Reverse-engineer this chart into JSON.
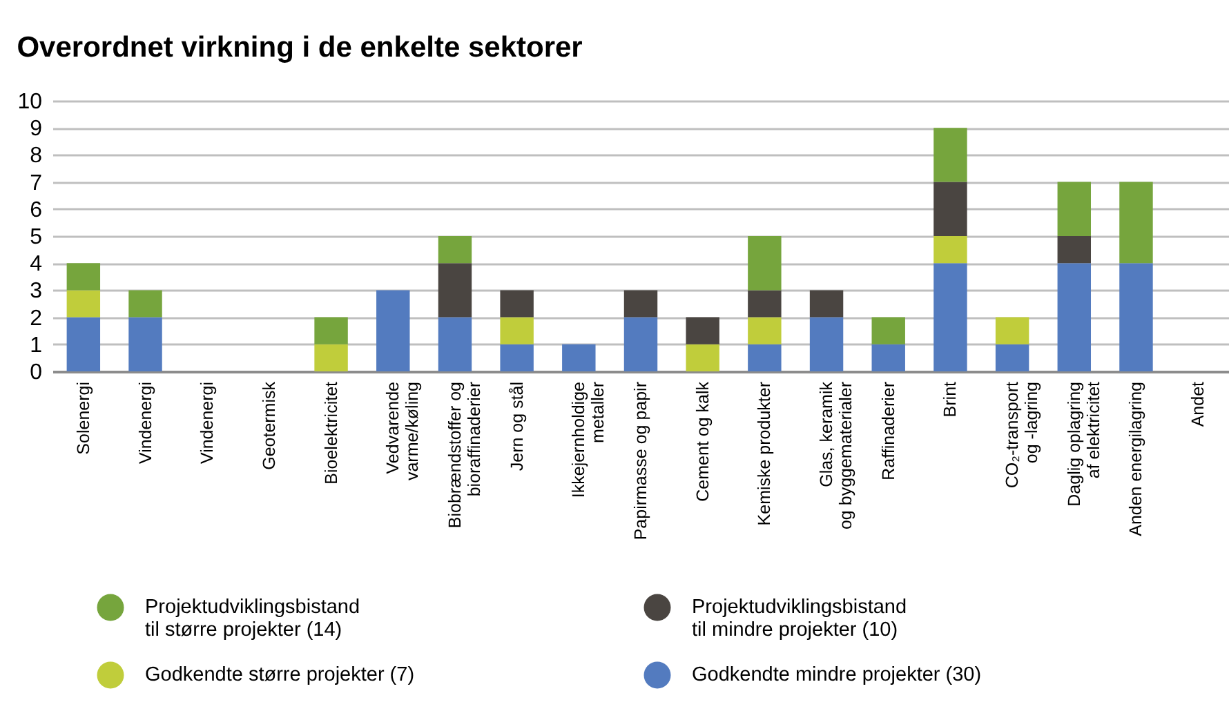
{
  "chart_data": {
    "type": "bar",
    "title": "Overordnet virkning i de enkelte sektorer",
    "categories": [
      "Solenergi",
      "Vindenergi",
      "Vindenergi",
      "Geotermisk",
      "Bioelektricitet",
      "Vedvarende varme/køling",
      "Biobrændstoffer og bioraffinaderier",
      "Jern og stål",
      "Ikkejernholdige metaller",
      "Papirmasse og papir",
      "Cement og kalk",
      "Kemiske produkter",
      "Glas, keramik og byggematerialer",
      "Raffinaderier",
      "Brint",
      "CO₂-transport og -lagring",
      "Daglig oplagring af elektricitet",
      "Anden energilagring",
      "Andet"
    ],
    "stacked": true,
    "series": [
      {
        "name": "Godkendte mindre projekter (30)",
        "color": "#537bbf",
        "values": [
          2,
          2,
          0,
          0,
          0,
          3,
          2,
          1,
          1,
          2,
          0,
          1,
          2,
          1,
          4,
          1,
          4,
          4,
          0
        ]
      },
      {
        "name": "Godkendte større projekter (7)",
        "color": "#c0cd3b",
        "values": [
          1,
          0,
          0,
          0,
          1,
          0,
          0,
          1,
          0,
          0,
          1,
          1,
          0,
          0,
          1,
          1,
          0,
          0,
          0
        ]
      },
      {
        "name": "Projektudviklingsbistand til mindre projekter (10)",
        "color": "#4a4541",
        "values": [
          0,
          0,
          0,
          0,
          0,
          0,
          2,
          1,
          0,
          1,
          1,
          1,
          1,
          0,
          2,
          0,
          1,
          0,
          0
        ]
      },
      {
        "name": "Projektudviklingsbistand til større projekter (14)",
        "color": "#76a53d",
        "values": [
          1,
          1,
          0,
          0,
          1,
          0,
          1,
          0,
          0,
          0,
          0,
          2,
          0,
          1,
          2,
          0,
          2,
          3,
          0
        ]
      }
    ],
    "ylim": [
      0,
      10
    ],
    "yticks": [
      0,
      1,
      2,
      3,
      4,
      5,
      6,
      7,
      8,
      9,
      10
    ],
    "grid": "y",
    "legend": "bottom"
  }
}
